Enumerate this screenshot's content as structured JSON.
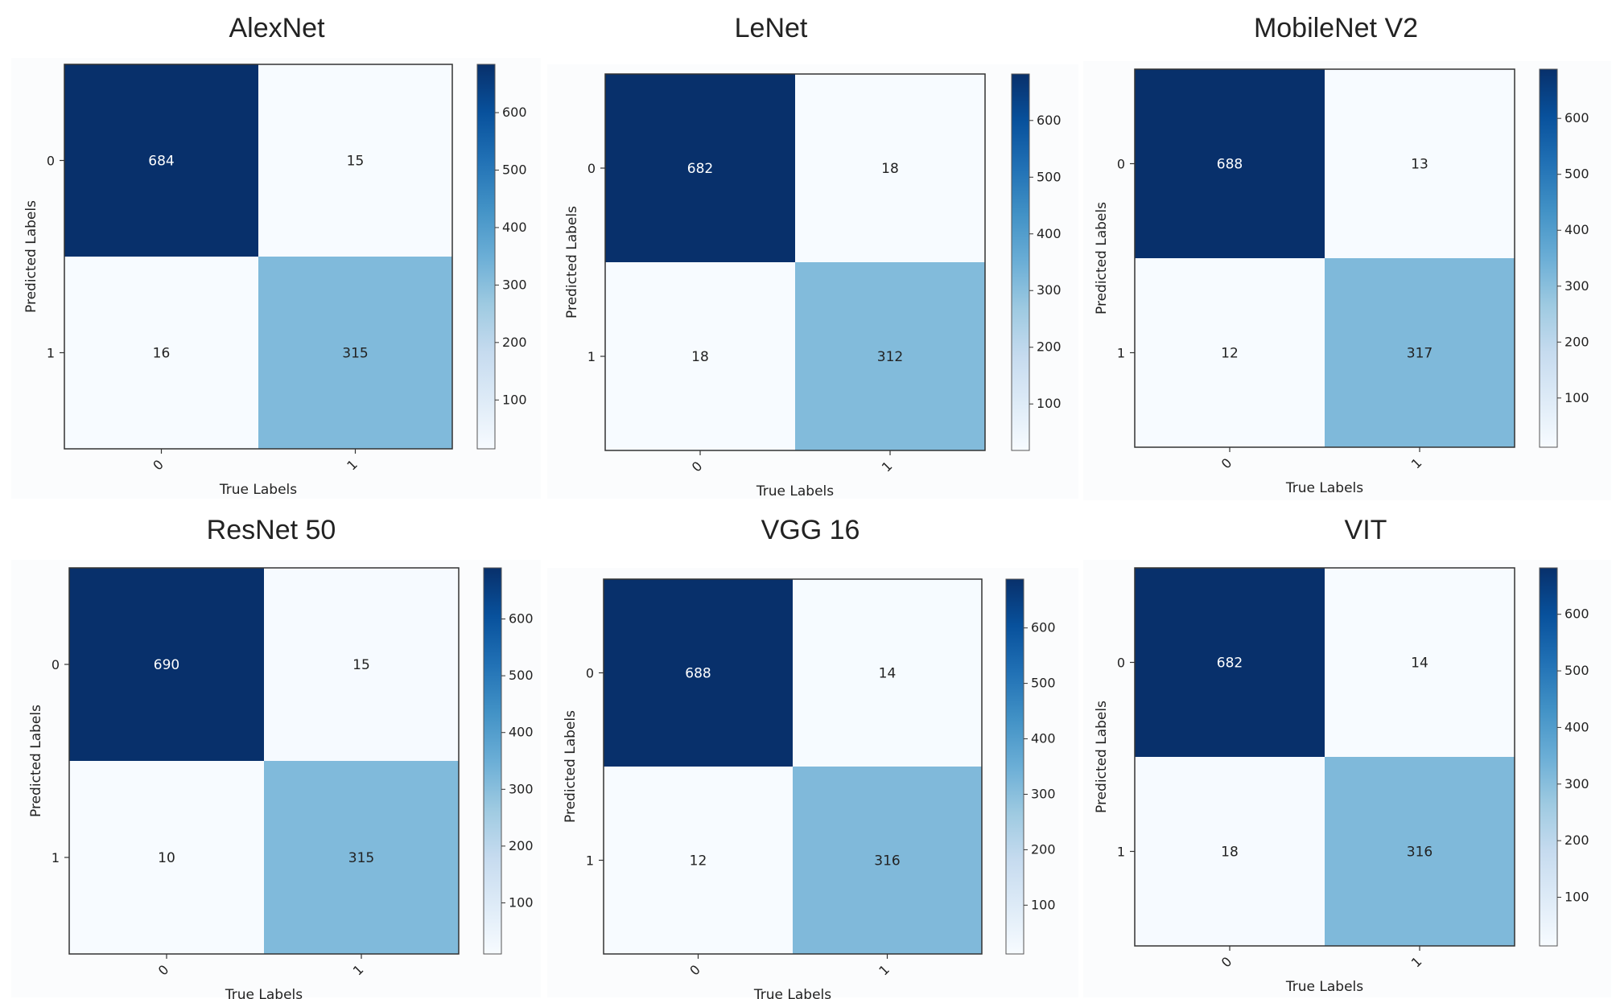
{
  "chart_data": [
    {
      "type": "heatmap",
      "title": "AlexNet",
      "xlabel": "True Labels",
      "ylabel": "Predicted Labels",
      "x_categories": [
        "0",
        "1"
      ],
      "y_categories": [
        "0",
        "1"
      ],
      "values": [
        [
          684,
          15
        ],
        [
          16,
          315
        ]
      ],
      "colormap": "Blues",
      "colorbar_ticks": [
        100,
        200,
        300,
        400,
        500,
        600
      ]
    },
    {
      "type": "heatmap",
      "title": "LeNet",
      "xlabel": "True Labels",
      "ylabel": "Predicted Labels",
      "x_categories": [
        "0",
        "1"
      ],
      "y_categories": [
        "0",
        "1"
      ],
      "values": [
        [
          682,
          18
        ],
        [
          18,
          312
        ]
      ],
      "colormap": "Blues",
      "colorbar_ticks": [
        100,
        200,
        300,
        400,
        500,
        600
      ]
    },
    {
      "type": "heatmap",
      "title": "MobileNet V2",
      "xlabel": "True Labels",
      "ylabel": "Predicted Labels",
      "x_categories": [
        "0",
        "1"
      ],
      "y_categories": [
        "0",
        "1"
      ],
      "values": [
        [
          688,
          13
        ],
        [
          12,
          317
        ]
      ],
      "colormap": "Blues",
      "colorbar_ticks": [
        100,
        200,
        300,
        400,
        500,
        600
      ]
    },
    {
      "type": "heatmap",
      "title": "ResNet 50",
      "xlabel": "True Labels",
      "ylabel": "Predicted Labels",
      "x_categories": [
        "0",
        "1"
      ],
      "y_categories": [
        "0",
        "1"
      ],
      "values": [
        [
          690,
          15
        ],
        [
          10,
          315
        ]
      ],
      "colormap": "Blues",
      "colorbar_ticks": [
        100,
        200,
        300,
        400,
        500,
        600
      ]
    },
    {
      "type": "heatmap",
      "title": "VGG 16",
      "xlabel": "True Labels",
      "ylabel": "Predicted Labels",
      "x_categories": [
        "0",
        "1"
      ],
      "y_categories": [
        "0",
        "1"
      ],
      "values": [
        [
          688,
          14
        ],
        [
          12,
          316
        ]
      ],
      "colormap": "Blues",
      "colorbar_ticks": [
        100,
        200,
        300,
        400,
        500,
        600
      ]
    },
    {
      "type": "heatmap",
      "title": "VIT",
      "xlabel": "True Labels",
      "ylabel": "Predicted Labels",
      "x_categories": [
        "0",
        "1"
      ],
      "y_categories": [
        "0",
        "1"
      ],
      "values": [
        [
          682,
          14
        ],
        [
          18,
          316
        ]
      ],
      "colormap": "Blues",
      "colorbar_ticks": [
        100,
        200,
        300,
        400,
        500,
        600
      ]
    }
  ]
}
